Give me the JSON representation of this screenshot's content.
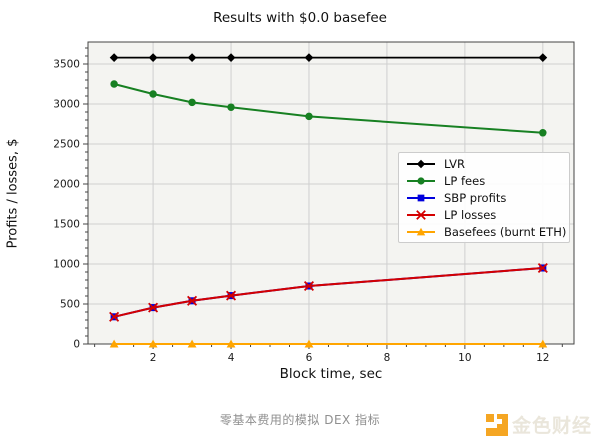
{
  "title": "Results with $0.0 basefee",
  "caption": "零基本费用的模拟 DEX 指标",
  "watermark": {
    "text": "金色财经",
    "icon": "jinse-logo-icon",
    "icon_color": "#f5a623",
    "text_color": "#eae6db"
  },
  "chart_data": {
    "type": "line",
    "title": "Results with $0.0 basefee",
    "xlabel": "Block time, sec",
    "ylabel": "Profits / losses, $",
    "x": [
      1,
      2,
      3,
      4,
      6,
      12
    ],
    "xlim": [
      0.33,
      12.8
    ],
    "ylim": [
      0,
      3775
    ],
    "x_major_ticks": [
      2,
      4,
      6,
      8,
      10,
      12
    ],
    "x_minor_step": 0.5,
    "y_major_ticks": [
      0,
      500,
      1000,
      1500,
      2000,
      2500,
      3000,
      3500
    ],
    "y_minor_step": 100,
    "grid": true,
    "legend_position": "center right",
    "series": [
      {
        "name": "LVR",
        "color": "#000000",
        "marker": "diamond",
        "values": [
          3580,
          3580,
          3580,
          3580,
          3580,
          3580
        ]
      },
      {
        "name": "LP fees",
        "color": "#178022",
        "marker": "circle",
        "values": [
          3250,
          3125,
          3020,
          2960,
          2845,
          2640
        ]
      },
      {
        "name": "SBP profits",
        "color": "#0000dd",
        "marker": "square",
        "values": [
          340,
          455,
          540,
          605,
          725,
          950
        ]
      },
      {
        "name": "LP losses",
        "color": "#d40000",
        "marker": "x",
        "values": [
          340,
          455,
          540,
          605,
          725,
          950
        ]
      },
      {
        "name": "Basefees (burnt ETH)",
        "color": "#ffa500",
        "marker": "triangle",
        "values": [
          0,
          0,
          0,
          0,
          0,
          0
        ]
      }
    ],
    "colors": {
      "plot_bg": "#f4f4f1",
      "grid": "#cfcfcf",
      "spine": "#444444",
      "tick_label": "#1a1a1a"
    }
  }
}
